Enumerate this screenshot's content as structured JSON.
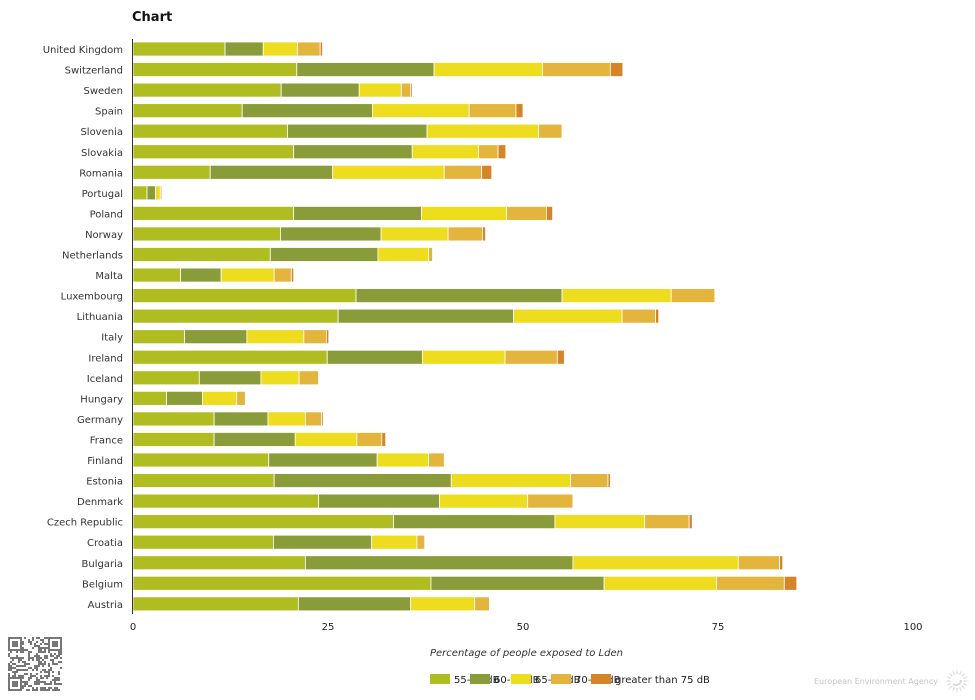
{
  "chart_data": {
    "type": "bar",
    "orientation": "horizontal",
    "stacked": true,
    "title": "Chart",
    "xlabel": "Percentage of people exposed to Lden",
    "ylabel": "",
    "xlim": [
      0,
      100
    ],
    "xticks": [
      0,
      25,
      50,
      75,
      100
    ],
    "grid": false,
    "legend_position": "bottom",
    "categories": [
      "United Kingdom",
      "Switzerland",
      "Sweden",
      "Spain",
      "Slovenia",
      "Slovakia",
      "Romania",
      "Portugal",
      "Poland",
      "Norway",
      "Netherlands",
      "Malta",
      "Luxembourg",
      "Lithuania",
      "Italy",
      "Ireland",
      "Iceland",
      "Hungary",
      "Germany",
      "France",
      "Finland",
      "Estonia",
      "Denmark",
      "Czech Republic",
      "Croatia",
      "Bulgaria",
      "Belgium",
      "Austria"
    ],
    "series": [
      {
        "name": "55-60 dB",
        "color": "#b0bd20",
        "values": [
          11.8,
          21.0,
          19.0,
          14.0,
          19.8,
          20.6,
          9.9,
          1.8,
          20.6,
          18.9,
          17.6,
          6.1,
          28.6,
          26.3,
          6.6,
          24.9,
          8.5,
          4.3,
          10.4,
          10.4,
          17.4,
          18.1,
          23.8,
          33.4,
          18.0,
          22.1,
          38.2,
          21.2
        ]
      },
      {
        "name": "60-65 dB",
        "color": "#8a9b3a",
        "values": [
          4.9,
          17.6,
          10.0,
          16.7,
          17.9,
          15.2,
          15.7,
          1.1,
          16.4,
          12.9,
          13.8,
          5.2,
          26.4,
          22.5,
          8.0,
          12.2,
          7.9,
          4.6,
          6.9,
          10.4,
          13.9,
          22.7,
          15.5,
          20.7,
          12.6,
          34.3,
          22.2,
          14.4
        ]
      },
      {
        "name": "65-70 dB",
        "color": "#eedc1e",
        "values": [
          4.4,
          13.9,
          5.4,
          12.4,
          14.3,
          8.5,
          14.3,
          0.6,
          10.9,
          8.6,
          6.5,
          6.8,
          14.0,
          13.9,
          7.3,
          10.6,
          4.9,
          4.4,
          4.8,
          7.9,
          6.6,
          15.3,
          11.3,
          11.5,
          5.8,
          21.2,
          14.4,
          8.2
        ]
      },
      {
        "name": "70-75 dB",
        "color": "#e3b53c",
        "values": [
          2.9,
          8.7,
          1.2,
          6.0,
          3.0,
          2.5,
          4.8,
          0.2,
          5.1,
          4.4,
          0.5,
          2.2,
          5.6,
          4.3,
          2.9,
          6.7,
          2.5,
          1.1,
          2.1,
          3.2,
          2.0,
          4.8,
          5.8,
          5.7,
          1.0,
          5.3,
          8.7,
          1.9
        ]
      },
      {
        "name": "greater than 75 dB",
        "color": "#d58526",
        "values": [
          0.3,
          1.6,
          0.2,
          0.9,
          0.0,
          1.0,
          1.3,
          0.0,
          0.8,
          0.4,
          0.0,
          0.3,
          0.1,
          0.4,
          0.3,
          0.9,
          0.1,
          0.0,
          0.2,
          0.5,
          0.0,
          0.3,
          0.1,
          0.4,
          0.0,
          0.4,
          1.6,
          0.1
        ]
      }
    ]
  },
  "legend_labels": [
    "55-60 dB",
    "60-65 dB",
    "65-70 dB",
    "70-75 dB",
    "greater than 75 dB"
  ],
  "footer": {
    "credit": "European Environment Agency",
    "qr_code": "qr-code"
  }
}
